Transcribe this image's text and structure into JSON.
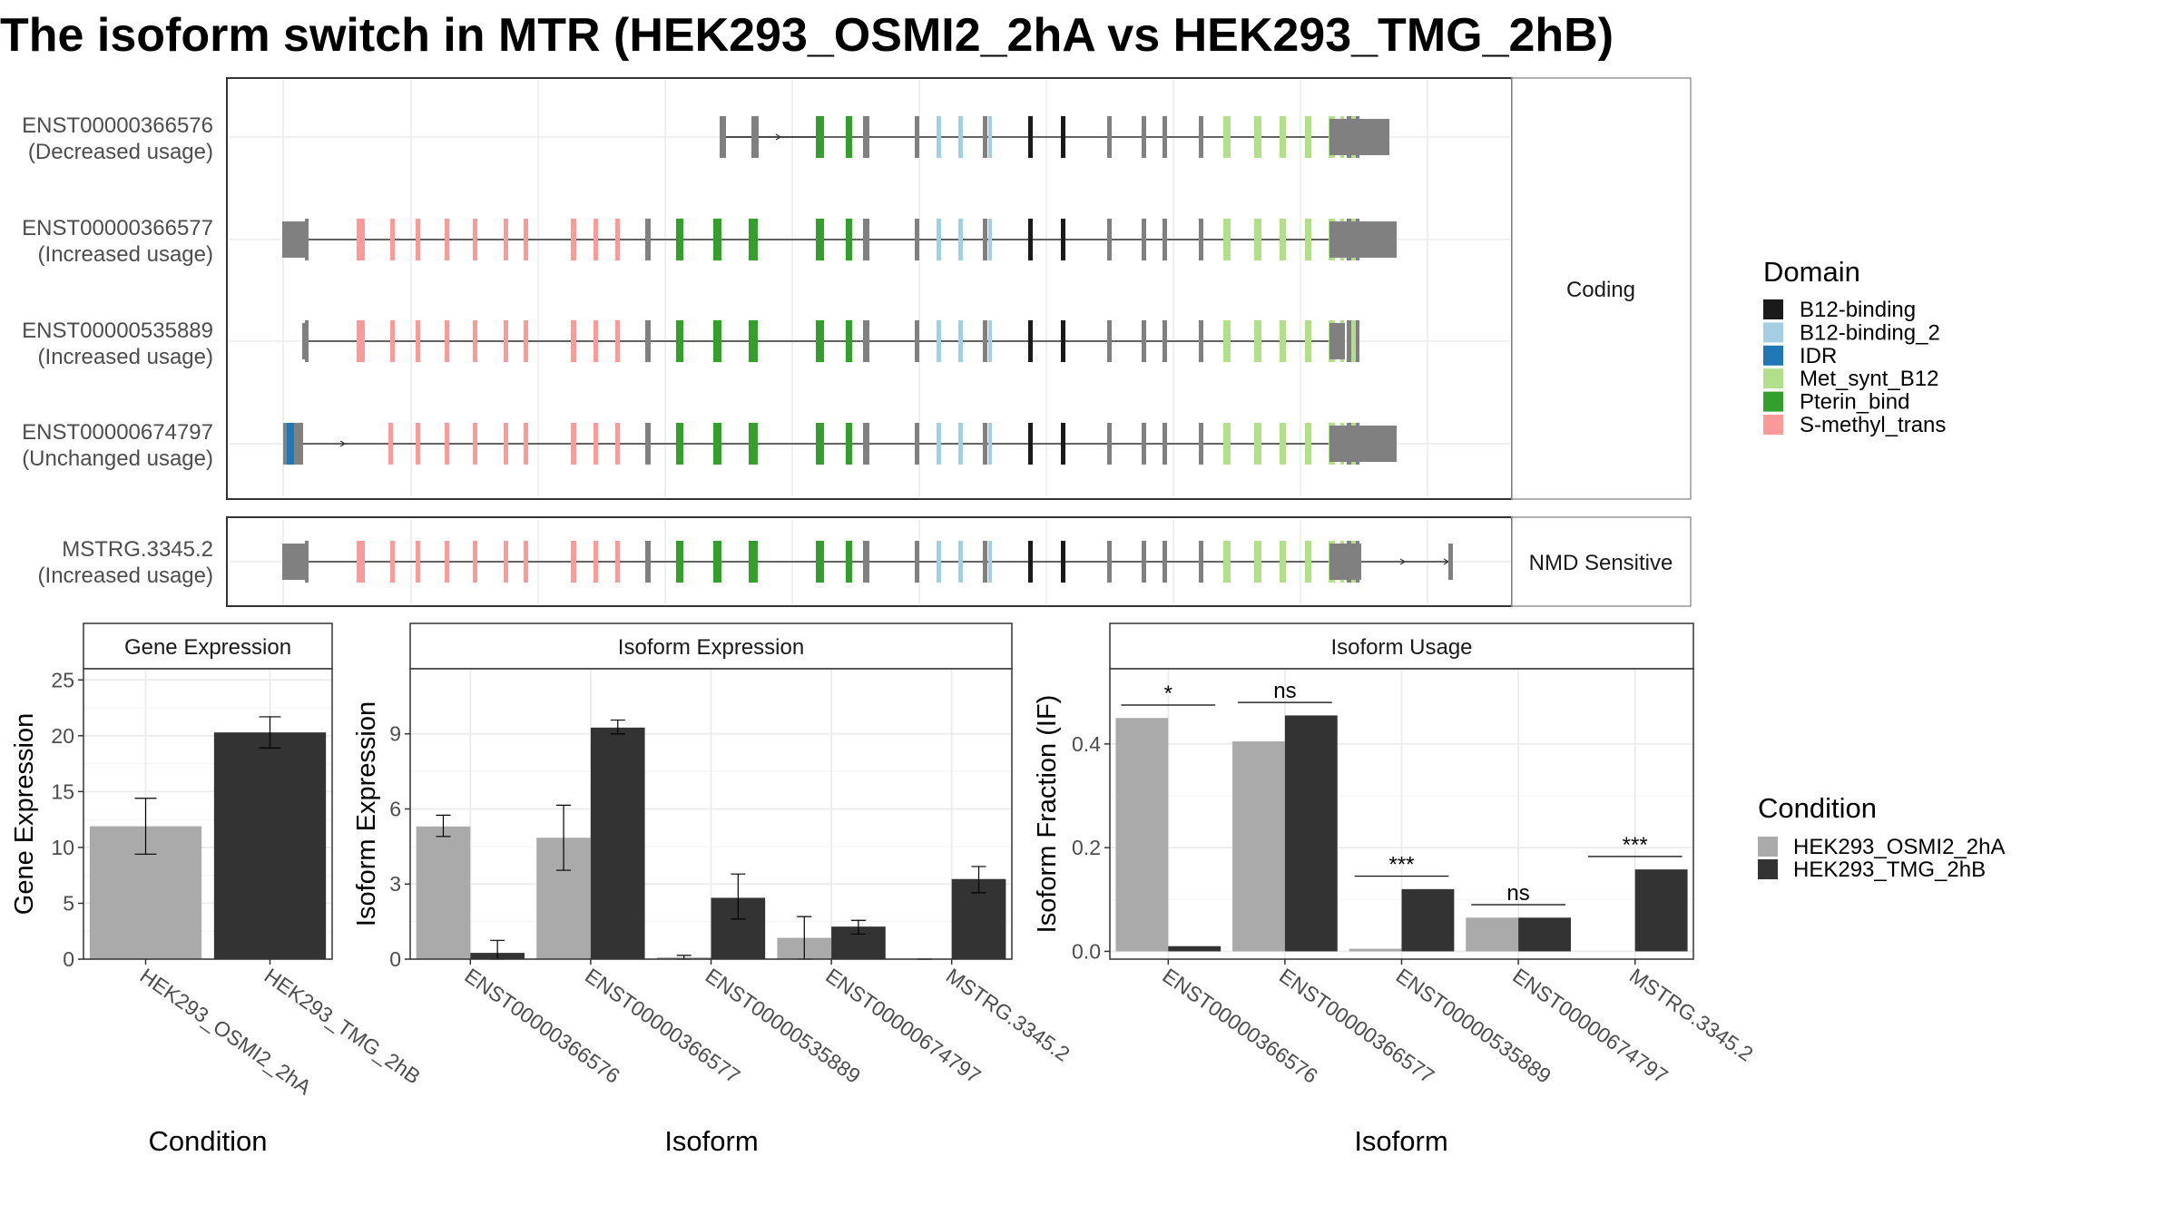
{
  "title": "The isoform switch in MTR (HEK293_OSMI2_2hA vs HEK293_TMG_2hB)",
  "colors": {
    "domain": {
      "B12-binding": "#1a1a1a",
      "B12-binding_2": "#a6cee3",
      "IDR": "#1f78b4",
      "Met_synt_B12": "#b2df8a",
      "Pterin_bind": "#33a02c",
      "S-methyl_trans": "#fb9a99"
    },
    "other_exon": "#808080",
    "cond_a": "#aaaaaa",
    "cond_b": "#333333"
  },
  "structure": {
    "panels": [
      {
        "label": "Coding",
        "isoforms": [
          {
            "id": "ENST00000366576",
            "status": "(Decreased usage)"
          },
          {
            "id": "ENST00000366577",
            "status": "(Increased usage)"
          },
          {
            "id": "ENST00000535889",
            "status": "(Increased usage)"
          },
          {
            "id": "ENST00000674797",
            "status": "(Unchanged usage)"
          }
        ]
      },
      {
        "label": "NMD Sensitive",
        "isoforms": [
          {
            "id": "MSTRG.3345.2",
            "status": "(Increased usage)"
          }
        ]
      }
    ]
  },
  "legend_domain": {
    "title": "Domain",
    "entries": [
      "B12-binding",
      "B12-binding_2",
      "IDR",
      "Met_synt_B12",
      "Pterin_bind",
      "S-methyl_trans"
    ]
  },
  "legend_condition": {
    "title": "Condition",
    "entries": [
      "HEK293_OSMI2_2hA",
      "HEK293_TMG_2hB"
    ]
  },
  "chart_data": [
    {
      "type": "bar",
      "title": "Gene Expression",
      "xlabel": "Condition",
      "ylabel": "Gene Expression",
      "categories": [
        "HEK293_OSMI2_2hA",
        "HEK293_TMG_2hB"
      ],
      "values": [
        11.9,
        20.3
      ],
      "errors": [
        [
          9.4,
          14.4
        ],
        [
          18.9,
          21.7
        ]
      ],
      "ylim": [
        0,
        26
      ],
      "yticks": [
        0,
        5,
        10,
        15,
        20,
        25
      ],
      "grid": true
    },
    {
      "type": "bar",
      "title": "Isoform Expression",
      "xlabel": "Isoform",
      "ylabel": "Isoform Expression",
      "categories": [
        "ENST00000366576",
        "ENST00000366577",
        "ENST00000535889",
        "ENST00000674797",
        "MSTRG.3345.2"
      ],
      "series": [
        {
          "name": "HEK293_OSMI2_2hA",
          "values": [
            5.3,
            4.85,
            0.07,
            0.85,
            0.0
          ],
          "errors": [
            [
              4.9,
              5.75
            ],
            [
              3.55,
              6.15
            ],
            [
              0.0,
              0.15
            ],
            [
              0.0,
              1.7
            ],
            [
              0.0,
              0.0
            ]
          ]
        },
        {
          "name": "HEK293_TMG_2hB",
          "values": [
            0.25,
            9.25,
            2.45,
            1.3,
            3.2
          ],
          "errors": [
            [
              0.0,
              0.75
            ],
            [
              9.0,
              9.55
            ],
            [
              1.6,
              3.4
            ],
            [
              1.0,
              1.55
            ],
            [
              2.65,
              3.7
            ]
          ]
        }
      ],
      "ylim": [
        0,
        11.6
      ],
      "yticks": [
        0,
        3,
        6,
        9
      ],
      "grid": true
    },
    {
      "type": "bar",
      "title": "Isoform Usage",
      "xlabel": "Isoform",
      "ylabel": "Isoform Fraction (IF)",
      "categories": [
        "ENST00000366576",
        "ENST00000366577",
        "ENST00000535889",
        "ENST00000674797",
        "MSTRG.3345.2"
      ],
      "series": [
        {
          "name": "HEK293_OSMI2_2hA",
          "values": [
            0.45,
            0.405,
            0.005,
            0.065,
            0.0
          ]
        },
        {
          "name": "HEK293_TMG_2hB",
          "values": [
            0.01,
            0.455,
            0.12,
            0.065,
            0.158
          ]
        }
      ],
      "significance": [
        "*",
        "ns",
        "***",
        "ns",
        "***"
      ],
      "ylim": [
        -0.015,
        0.545
      ],
      "yticks": [
        0.0,
        0.2,
        0.4
      ],
      "grid": true
    }
  ]
}
